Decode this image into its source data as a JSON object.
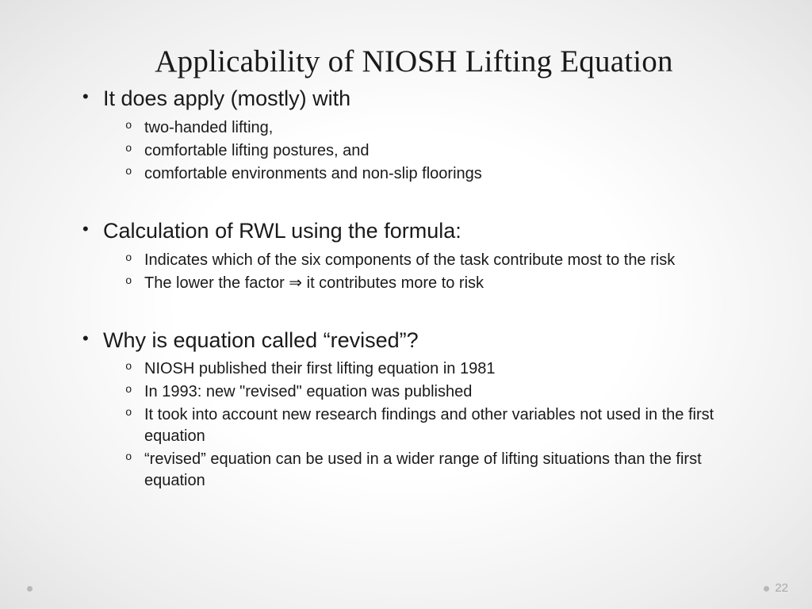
{
  "title": "Applicability of NIOSH Lifting Equation",
  "sections": [
    {
      "heading": "It does apply (mostly) with",
      "items": [
        "two-handed lifting,",
        "comfortable lifting postures, and",
        "comfortable environments and non-slip floorings"
      ]
    },
    {
      "heading": "Calculation of RWL using the formula:",
      "items": [
        "Indicates which of the six components of the task contribute most to the risk",
        "The lower the factor ⇒ it contributes more to risk"
      ]
    },
    {
      "heading": "Why is equation called “revised”?",
      "items": [
        "NIOSH published their first lifting equation in 1981",
        "In 1993: new \"revised\" equation was published",
        "It took into account new research findings and other variables not used in the first equation",
        "“revised” equation can be used in a wider range of lifting situations than the first equation"
      ]
    }
  ],
  "page_number": "22",
  "colors": {
    "text": "#1a1a1a",
    "page_num": "#a8a8a8",
    "dot": "#b8b8b8",
    "bg_center": "#ffffff",
    "bg_edge": "#e2e2e2"
  },
  "typography": {
    "title_font": "Georgia serif",
    "title_size_pt": 30,
    "body_font": "Century Gothic sans-serif",
    "l1_size_pt": 20,
    "l2_size_pt": 15
  }
}
